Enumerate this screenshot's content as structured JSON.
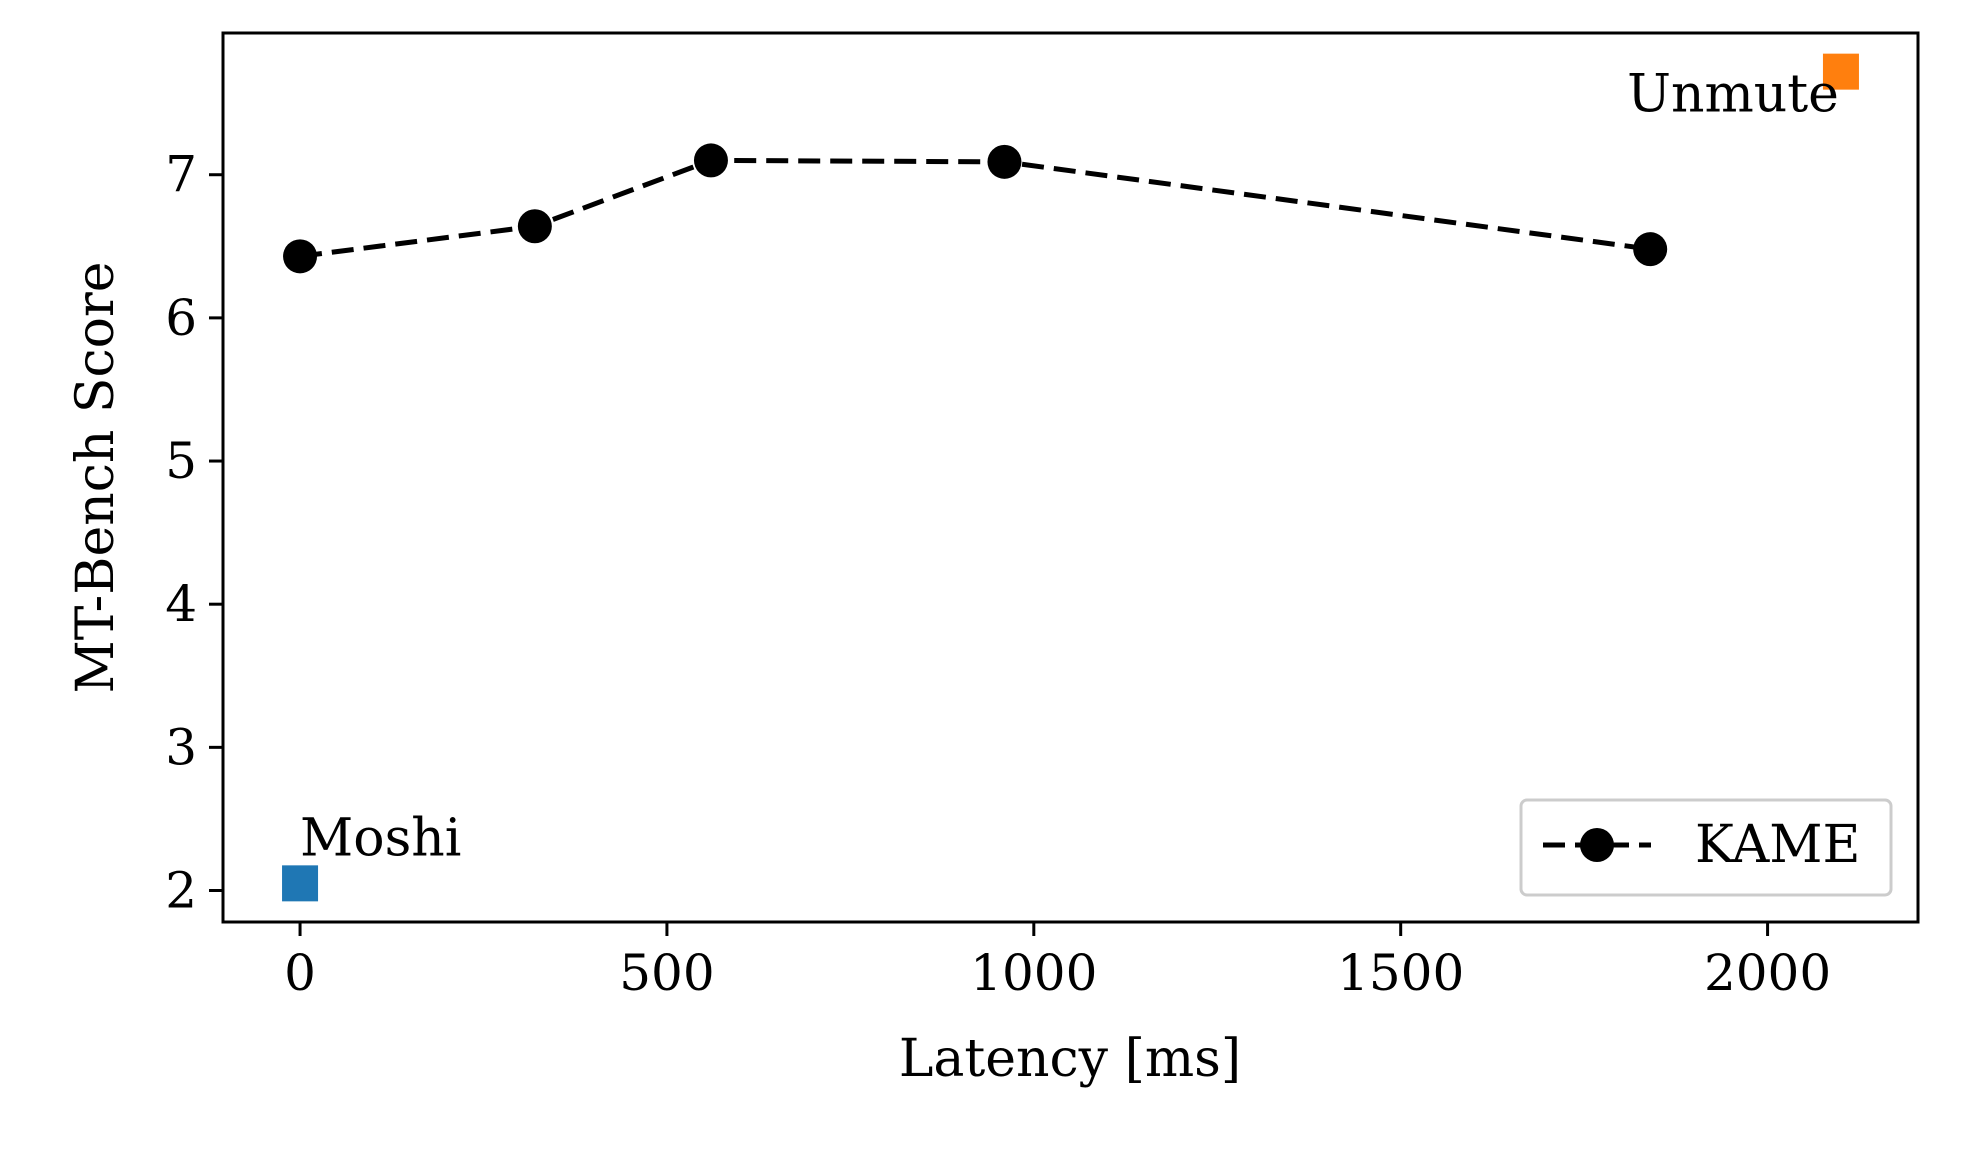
{
  "chart_data": {
    "type": "scatter",
    "xlabel": "Latency [ms]",
    "ylabel": "MT-Bench Score",
    "xlim": [
      -105,
      2205
    ],
    "ylim": [
      1.78,
      7.99
    ],
    "xticks": [
      0,
      500,
      1000,
      1500,
      2000
    ],
    "yticks": [
      2,
      3,
      4,
      5,
      6,
      7
    ],
    "grid": false,
    "legend": {
      "position": "lower-right",
      "entries": [
        "KAME"
      ]
    },
    "series": [
      {
        "name": "KAME",
        "style": "dashed-line-with-circles",
        "color": "#000000",
        "points": [
          {
            "x": 0,
            "y": 6.43
          },
          {
            "x": 320,
            "y": 6.64
          },
          {
            "x": 560,
            "y": 7.1
          },
          {
            "x": 960,
            "y": 7.09
          },
          {
            "x": 1840,
            "y": 6.48
          }
        ]
      }
    ],
    "annotations": [
      {
        "label": "Moshi",
        "x": 0,
        "y": 2.05,
        "color": "#1f77b4",
        "marker": "square"
      },
      {
        "label": "Unmute",
        "x": 2100,
        "y": 7.72,
        "color": "#ff7f0e",
        "marker": "square"
      }
    ]
  }
}
